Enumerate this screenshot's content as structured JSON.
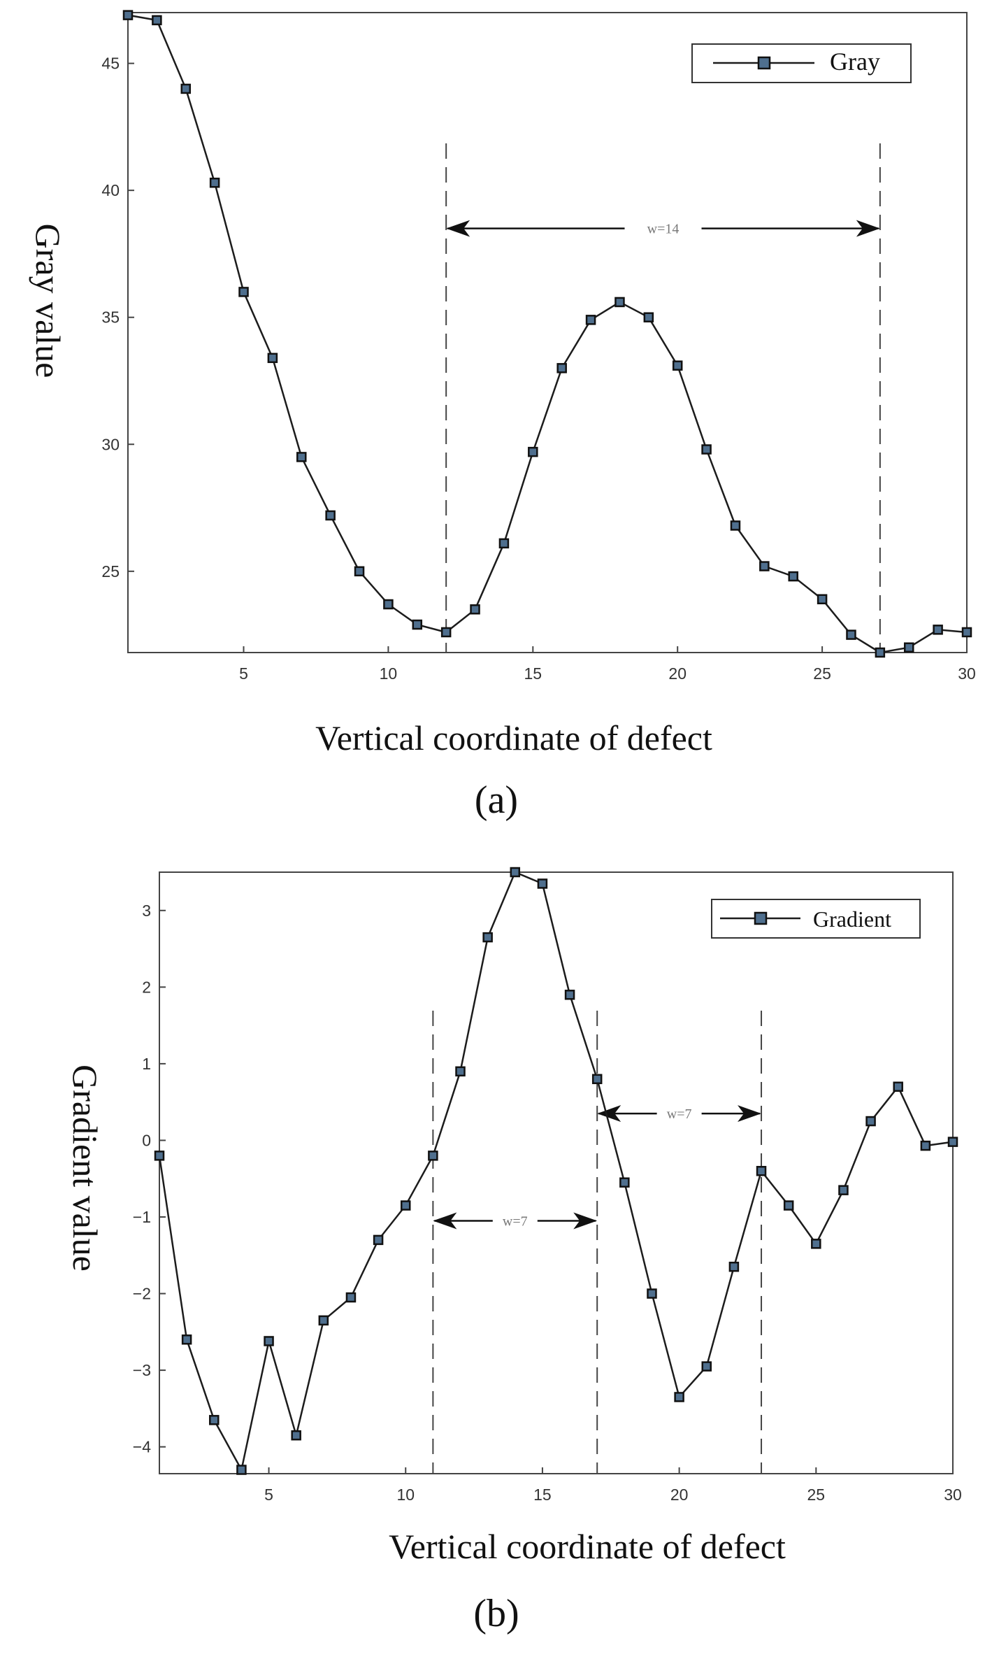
{
  "chart_data": [
    {
      "type": "line",
      "panel_label": "(a)",
      "xlabel": "Vertical coordinate of defect",
      "ylabel": "Gray value",
      "xlim": [
        1,
        30
      ],
      "ylim": [
        21.8,
        47
      ],
      "xticks": [
        5,
        10,
        15,
        20,
        25,
        30
      ],
      "yticks": [
        25,
        30,
        35,
        40,
        45
      ],
      "legend": "top-right",
      "series": [
        {
          "name": "Gray",
          "x": [
            1,
            2,
            3,
            4,
            5,
            6,
            7,
            8,
            9,
            10,
            11,
            12,
            13,
            14,
            15,
            16,
            17,
            18,
            19,
            20,
            21,
            22,
            23,
            24,
            25,
            26,
            27,
            28,
            29,
            30
          ],
          "values": [
            46.9,
            46.7,
            44.0,
            40.3,
            36.0,
            33.4,
            29.5,
            27.2,
            25.0,
            23.7,
            22.9,
            22.6,
            23.5,
            26.1,
            29.7,
            33.0,
            34.9,
            35.6,
            35.0,
            33.1,
            29.8,
            26.8,
            25.2,
            24.8,
            23.9,
            22.5,
            21.8,
            22.0,
            22.7,
            22.6
          ]
        }
      ],
      "annotations": [
        {
          "text": "w=14",
          "x1": 12,
          "x2": 27,
          "y": 38.5
        }
      ],
      "vlines": [
        12,
        27
      ]
    },
    {
      "type": "line",
      "panel_label": "(b)",
      "xlabel": "Vertical coordinate of defect",
      "ylabel": "Gradient value",
      "xlim": [
        1,
        30
      ],
      "ylim": [
        -4.35,
        3.5
      ],
      "xticks": [
        5,
        10,
        15,
        20,
        25,
        30
      ],
      "yticks": [
        3,
        2,
        1,
        0,
        -1,
        -2,
        -3,
        -4
      ],
      "yticklabels": [
        "3",
        "2",
        "1",
        "0",
        "−1",
        "−2",
        "−3",
        "−4"
      ],
      "legend": "top-right",
      "series": [
        {
          "name": "Gradient",
          "x": [
            1,
            2,
            3,
            4,
            5,
            6,
            7,
            8,
            9,
            10,
            11,
            12,
            13,
            14,
            15,
            16,
            17,
            18,
            19,
            20,
            21,
            22,
            23,
            24,
            25,
            26,
            27,
            28,
            29,
            30
          ],
          "values": [
            -0.2,
            -2.6,
            -3.65,
            -4.3,
            -2.62,
            -3.85,
            -2.35,
            -2.05,
            -1.3,
            -0.85,
            -0.2,
            0.9,
            2.65,
            3.5,
            3.35,
            1.9,
            0.8,
            -0.55,
            -2.0,
            -3.35,
            -2.95,
            -1.65,
            -0.4,
            -0.85,
            -1.35,
            -0.65,
            0.25,
            0.7,
            -0.07,
            -0.02
          ]
        }
      ],
      "annotations": [
        {
          "text": "w=7",
          "x1": 11,
          "x2": 17,
          "y": -1.05
        },
        {
          "text": "w=7",
          "x1": 17,
          "x2": 23,
          "y": 0.35
        }
      ],
      "vlines": [
        11,
        17,
        23
      ]
    }
  ]
}
